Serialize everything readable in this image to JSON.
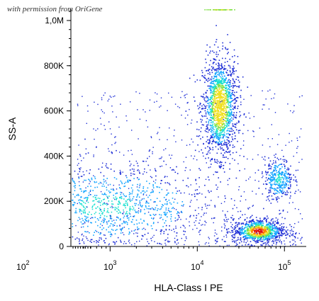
{
  "credit": "with permission from OriGene",
  "chart_data": {
    "type": "scatter",
    "subtype": "flow-cytometry-density-dot-plot",
    "xlabel": "HLA-Class I PE",
    "ylabel": "SS-A",
    "x_scale": "log (biexponential)",
    "x_ticks": [
      {
        "base": "10",
        "exp": "2",
        "value": 100
      },
      {
        "base": "10",
        "exp": "3",
        "value": 1000
      },
      {
        "base": "10",
        "exp": "4",
        "value": 10000
      },
      {
        "base": "10",
        "exp": "5",
        "value": 100000
      }
    ],
    "y_ticks": [
      {
        "label": "0",
        "value": 0
      },
      {
        "label": "200K",
        "value": 200000
      },
      {
        "label": "400K",
        "value": 400000
      },
      {
        "label": "600K",
        "value": 600000
      },
      {
        "label": "800K",
        "value": 800000
      },
      {
        "label": "1,0M",
        "value": 1000000
      }
    ],
    "ylim": [
      0,
      1000000
    ],
    "grid": false,
    "color_scale": [
      "#1f2fd6",
      "#14a5ff",
      "#18e0d0",
      "#7ce040",
      "#f0e020",
      "#ff8000",
      "#e01010"
    ],
    "populations": [
      {
        "x_center": 18000,
        "y_center": 620000,
        "x_spread_decades": 0.1,
        "y_spread": 110000,
        "density": "high"
      },
      {
        "x_center": 50000,
        "y_center": 70000,
        "x_spread_decades": 0.15,
        "y_spread": 28000,
        "density": "very high"
      },
      {
        "x_center": 85000,
        "y_center": 300000,
        "x_spread_decades": 0.08,
        "y_spread": 45000,
        "density": "medium"
      },
      {
        "x_center": 900,
        "y_center": 180000,
        "x_spread_decades": 0.6,
        "y_spread": 90000,
        "density": "low"
      }
    ]
  }
}
